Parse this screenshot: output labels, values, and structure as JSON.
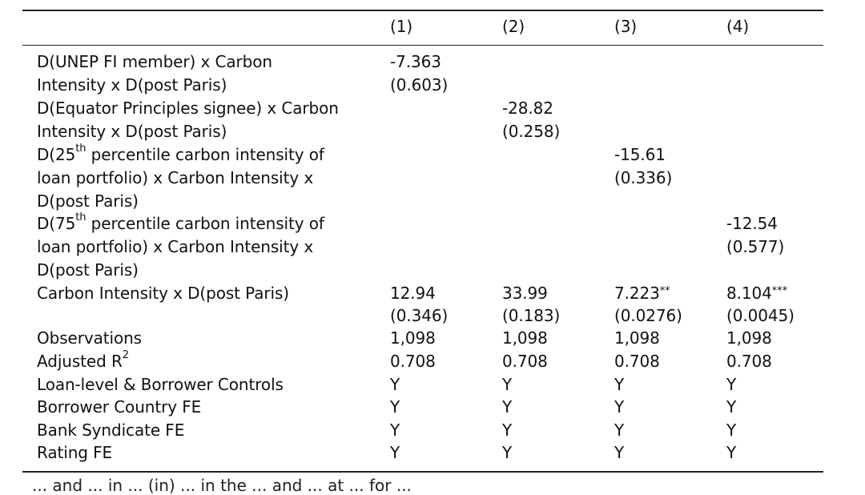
{
  "columns": [
    "(1)",
    "(2)",
    "(3)",
    "(4)"
  ],
  "rows": [
    {
      "label_lines": [
        {
          "pre": "D(UNEP FI member) x Carbon"
        },
        {
          "pre": "Intensity x D(post Paris)"
        }
      ],
      "coef": [
        "-7.363",
        "",
        "",
        ""
      ],
      "coef_stars": [
        "",
        "",
        "",
        ""
      ],
      "pval": [
        "(0.603)",
        "",
        "",
        ""
      ]
    },
    {
      "label_lines": [
        {
          "pre": "D(Equator Principles signee) x Carbon"
        },
        {
          "pre": "Intensity x D(post Paris)"
        }
      ],
      "coef": [
        "",
        "-28.82",
        "",
        ""
      ],
      "coef_stars": [
        "",
        "",
        "",
        ""
      ],
      "pval": [
        "",
        "(0.258)",
        "",
        ""
      ]
    },
    {
      "label_lines": [
        {
          "pre": "D(25",
          "sup": "th",
          "post": " percentile carbon intensity of"
        },
        {
          "pre": "loan portfolio) x Carbon Intensity x"
        },
        {
          "pre": "D(post Paris)"
        }
      ],
      "coef": [
        "",
        "",
        "-15.61",
        ""
      ],
      "coef_stars": [
        "",
        "",
        "",
        ""
      ],
      "pval": [
        "",
        "",
        "(0.336)",
        ""
      ]
    },
    {
      "label_lines": [
        {
          "pre": "D(75",
          "sup": "th",
          "post": " percentile carbon intensity of"
        },
        {
          "pre": "loan portfolio) x Carbon Intensity x"
        },
        {
          "pre": "D(post Paris)"
        }
      ],
      "coef": [
        "",
        "",
        "",
        "-12.54"
      ],
      "coef_stars": [
        "",
        "",
        "",
        ""
      ],
      "pval": [
        "",
        "",
        "",
        "(0.577)"
      ]
    },
    {
      "label_lines": [
        {
          "pre": "Carbon Intensity x D(post Paris)"
        }
      ],
      "coef": [
        "12.94",
        "33.99",
        "7.223",
        "8.104"
      ],
      "coef_stars": [
        "",
        "",
        "**",
        "***"
      ],
      "pval": [
        "(0.346)",
        "(0.183)",
        "(0.0276)",
        "(0.0045)"
      ]
    }
  ],
  "stats": [
    {
      "pre": "Observations",
      "values": [
        "1,098",
        "1,098",
        "1,098",
        "1,098"
      ]
    },
    {
      "pre": "Adjusted R",
      "sup": "2",
      "values": [
        "0.708",
        "0.708",
        "0.708",
        "0.708"
      ]
    },
    {
      "pre": "Loan-level & Borrower Controls",
      "values": [
        "Y",
        "Y",
        "Y",
        "Y"
      ]
    },
    {
      "pre": "Borrower Country FE",
      "values": [
        "Y",
        "Y",
        "Y",
        "Y"
      ]
    },
    {
      "pre": "Bank Syndicate FE",
      "values": [
        "Y",
        "Y",
        "Y",
        "Y"
      ]
    },
    {
      "pre": "Rating FE",
      "values": [
        "Y",
        "Y",
        "Y",
        "Y"
      ]
    }
  ],
  "footnote_partial": "... and ... in ... (in) ... in the ... and ... at ... for ..."
}
